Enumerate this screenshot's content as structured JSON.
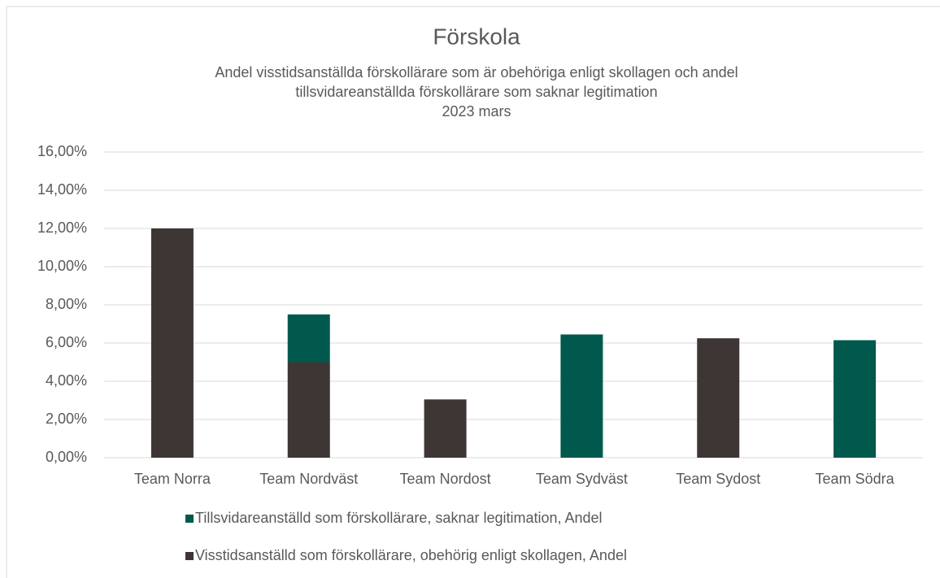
{
  "chart_data": {
    "type": "stacked_bar",
    "title": "Förskola",
    "subtitle": [
      "Andel visstidsanställda förskollärare som är obehöriga enligt skollagen och andel",
      "tillsvidareanställda förskollärare som saknar legitimation",
      "2023 mars"
    ],
    "categories": [
      "Team Norra",
      "Team Nordväst",
      "Team Nordost",
      "Team Sydväst",
      "Team Sydost",
      "Team Södra"
    ],
    "series": [
      {
        "name": "Visstidsanställd som förskollärare, obehörig enligt skollagen, Andel",
        "color": "#3d3634",
        "values": [
          12,
          5,
          3.05,
          0,
          6.25,
          0
        ]
      },
      {
        "name": "Tillsvidareanställd som förskollärare, saknar legitimation, Andel",
        "color": "#00594c",
        "values": [
          0,
          2.5,
          0,
          6.45,
          0,
          6.15
        ]
      }
    ],
    "ylim": [
      0,
      16
    ],
    "yticks": [
      {
        "value": 0,
        "label": "0,00%"
      },
      {
        "value": 2,
        "label": "2,00%"
      },
      {
        "value": 4,
        "label": "4,00%"
      },
      {
        "value": 6,
        "label": "6,00%"
      },
      {
        "value": 8,
        "label": "8,00%"
      },
      {
        "value": 10,
        "label": "10,00%"
      },
      {
        "value": 12,
        "label": "12,00%"
      },
      {
        "value": 14,
        "label": "14,00%"
      },
      {
        "value": 16,
        "label": "16,00%"
      }
    ],
    "grid": true
  }
}
